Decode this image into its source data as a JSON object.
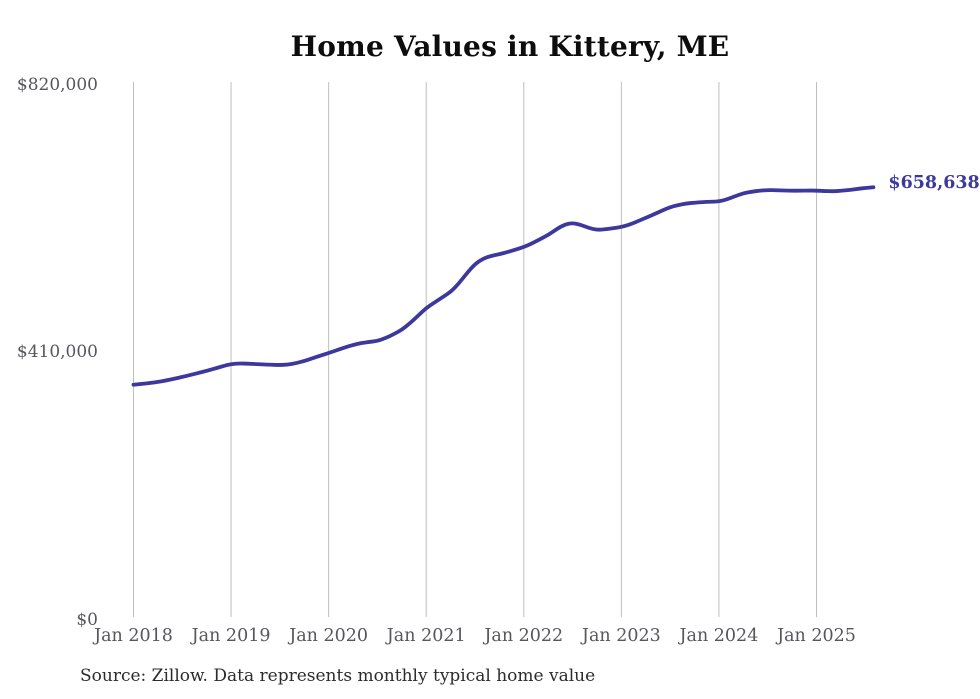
{
  "chart_data": {
    "type": "line",
    "title": "Home Values in Kittery, ME",
    "source_note": "Source: Zillow. Data represents monthly typical home value",
    "end_label": "$658,638",
    "series_name": "Monthly typical home value",
    "x_start": "Jan 2018",
    "x_end": "Aug 2025",
    "x_tick_labels": [
      "Jan 2018",
      "Jan 2019",
      "Jan 2020",
      "Jan 2021",
      "Jan 2022",
      "Jan 2023",
      "Jan 2024",
      "Jan 2025"
    ],
    "x_ticks_every_months": 12,
    "y_tick_labels": [
      "$0",
      "$410,000",
      "$820,000"
    ],
    "y_tick_values": [
      0,
      410000,
      820000
    ],
    "ylim": [
      0,
      820000
    ],
    "grid": "vertical-only",
    "legend": "none",
    "colors": {
      "line": "#3c389c",
      "end_label": "#3c389c",
      "grid": "#bfbfbf",
      "axis_text": "#56575c",
      "title": "#0d0d0d",
      "source": "#2b2b2b",
      "background": "#ffffff"
    },
    "values": [
      356000,
      357200,
      358600,
      360300,
      362500,
      365100,
      368000,
      371000,
      374100,
      377300,
      380800,
      384400,
      387800,
      388600,
      388300,
      387700,
      387100,
      386500,
      386200,
      386900,
      389100,
      392400,
      396500,
      400600,
      404600,
      408900,
      413100,
      417000,
      419900,
      421600,
      423100,
      427500,
      433400,
      440200,
      450300,
      461700,
      473600,
      481900,
      490100,
      498200,
      511000,
      527000,
      541000,
      549400,
      553500,
      556100,
      559400,
      563100,
      567100,
      572500,
      579100,
      585600,
      594100,
      601600,
      603900,
      601100,
      596200,
      593300,
      594100,
      595900,
      597800,
      601400,
      606400,
      611900,
      617100,
      622800,
      628100,
      631500,
      633800,
      635100,
      636000,
      636500,
      636800,
      640100,
      645000,
      649400,
      651800,
      653500,
      654400,
      654100,
      653700,
      653400,
      653500,
      653600,
      653600,
      652900,
      652500,
      653200,
      654500,
      656100,
      657600,
      658638
    ]
  }
}
